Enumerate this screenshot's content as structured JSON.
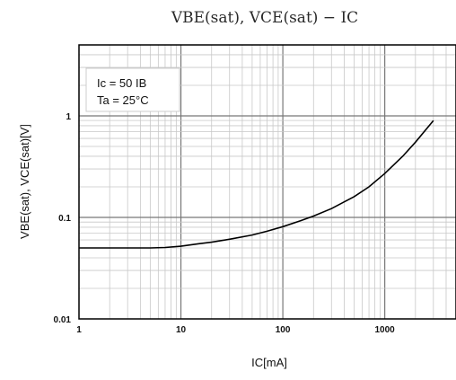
{
  "chart_data": {
    "type": "line",
    "title": "VBE(sat), VCE(sat) − IC",
    "xlabel": "IC[mA]",
    "ylabel": "VBE(sat), VCE(sat)[V]",
    "x_scale": "log",
    "y_scale": "log",
    "xlim": [
      1,
      5000
    ],
    "ylim": [
      0.01,
      5
    ],
    "x_ticks": [
      "1",
      "10",
      "100",
      "1000"
    ],
    "y_ticks": [
      "0.01",
      "0.1",
      "1"
    ],
    "grid": true,
    "legend": {
      "placement": "top-left",
      "line1": "Ic = 50 IB",
      "line2": "Ta = 25°C"
    },
    "series": [
      {
        "x": [
          1,
          2,
          3,
          5,
          7,
          10,
          15,
          20,
          30,
          50,
          70,
          100,
          150,
          200,
          300,
          500,
          700,
          1000,
          1500,
          2000,
          3000
        ],
        "y": [
          0.05,
          0.05,
          0.05,
          0.05,
          0.0505,
          0.052,
          0.055,
          0.057,
          0.061,
          0.067,
          0.073,
          0.081,
          0.093,
          0.103,
          0.122,
          0.16,
          0.2,
          0.27,
          0.4,
          0.55,
          0.9
        ]
      }
    ]
  }
}
